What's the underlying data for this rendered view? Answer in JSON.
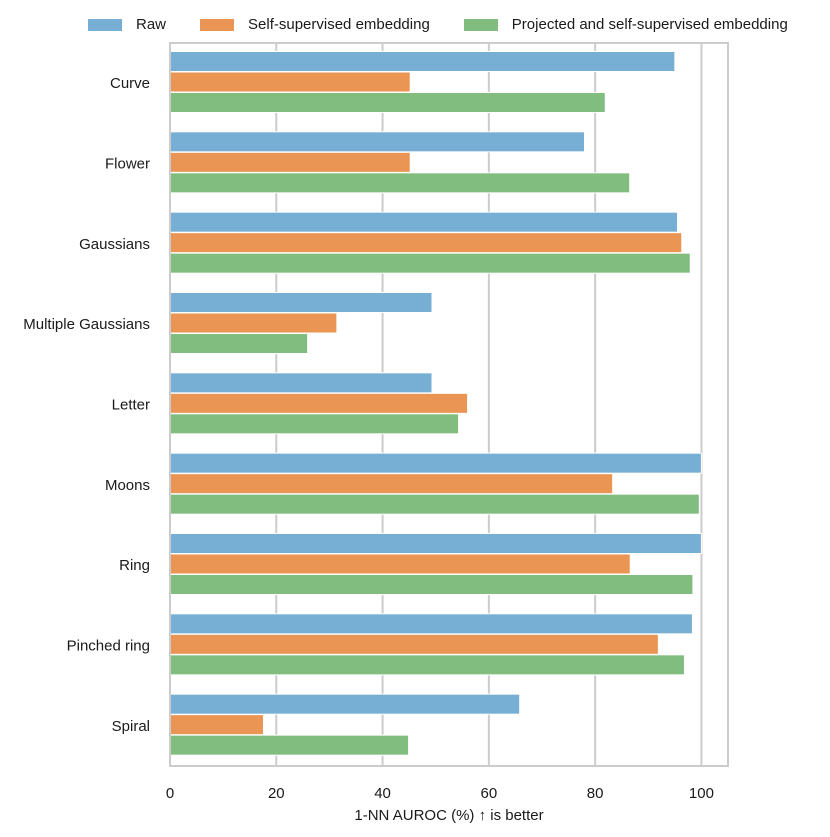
{
  "chart_data": {
    "type": "bar",
    "orientation": "horizontal",
    "categories": [
      "Curve",
      "Flower",
      "Gaussians",
      "Multiple Gaussians",
      "Letter",
      "Moons",
      "Ring",
      "Pinched ring",
      "Spiral"
    ],
    "series": [
      {
        "name": "Raw",
        "color": "#76aed4",
        "values": [
          95.0,
          78.0,
          95.5,
          49.3,
          49.3,
          100.0,
          100.0,
          98.3,
          65.8
        ]
      },
      {
        "name": "Self-supervised embedding",
        "color": "#ea9553",
        "values": [
          45.2,
          45.2,
          96.3,
          31.4,
          56.0,
          83.3,
          86.6,
          91.9,
          17.6
        ]
      },
      {
        "name": "Projected and self-supervised embedding",
        "color": "#80bd7f",
        "values": [
          81.9,
          86.5,
          97.9,
          25.9,
          54.3,
          99.6,
          98.4,
          96.8,
          44.9
        ]
      }
    ],
    "xlabel": "1-NN AUROC (%) ↑ is better",
    "ylabel": "",
    "xlim": [
      0,
      105
    ],
    "xticks": [
      0,
      20,
      40,
      60,
      80,
      100
    ],
    "grid": true,
    "legend_position": "top"
  }
}
